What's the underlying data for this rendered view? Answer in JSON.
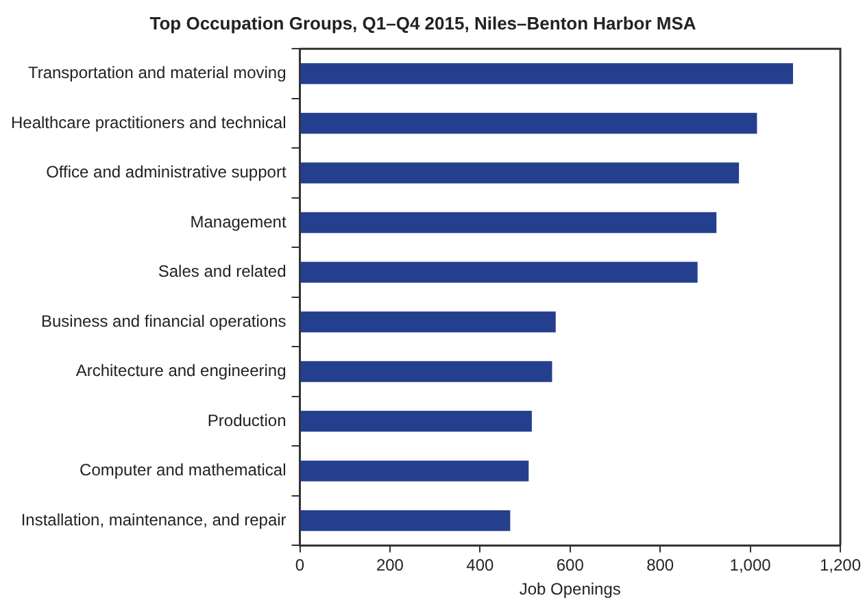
{
  "chart_data": {
    "type": "bar",
    "orientation": "horizontal",
    "title": "Top Occupation Groups, Q1–Q4 2015, Niles–Benton Harbor MSA",
    "xlabel": "Job Openings",
    "categories": [
      "Transportation and material moving",
      "Healthcare practitioners and technical",
      "Office and administrative support",
      "Management",
      "Sales and related",
      "Business and financial operations",
      "Architecture and engineering",
      "Production",
      "Computer and mathematical",
      "Installation, maintenance, and repair"
    ],
    "values": [
      1095,
      1015,
      975,
      925,
      883,
      568,
      560,
      515,
      508,
      467
    ],
    "color": "#253f8f",
    "xlim": [
      0,
      1200
    ],
    "xticks": [
      0,
      200,
      400,
      600,
      800,
      {
        "value": 1000,
        "label": "1,000"
      },
      {
        "value": 1200,
        "label": "1,200"
      }
    ],
    "grid": false,
    "legend": false
  }
}
